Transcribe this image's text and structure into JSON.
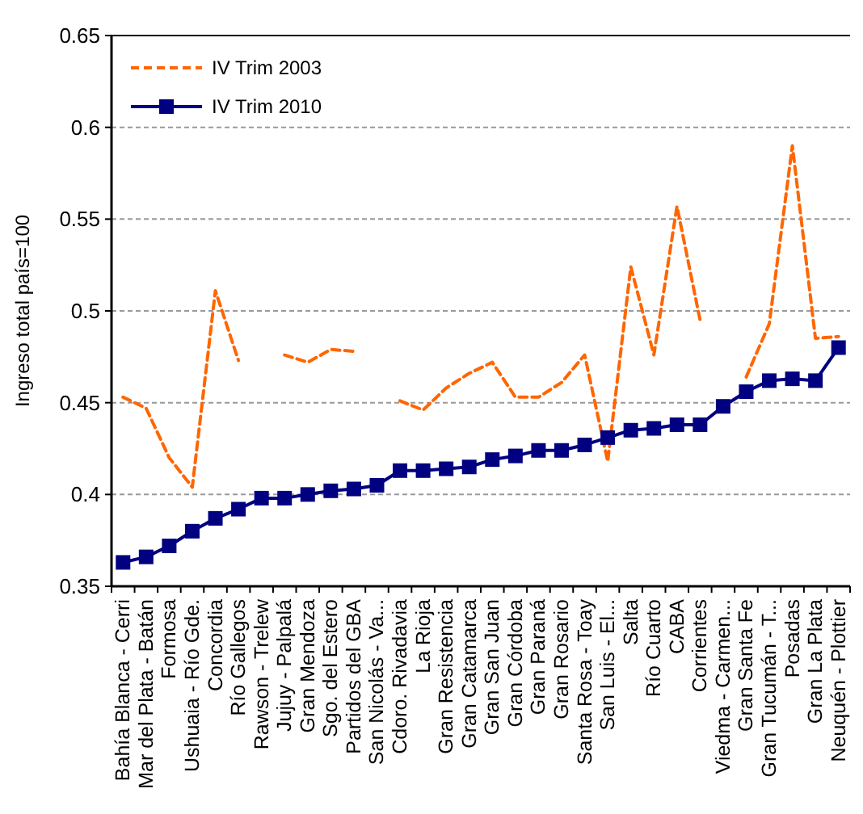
{
  "chart_data": {
    "type": "line",
    "ylabel": "Ingreso total país=100",
    "categories": [
      "Bahía Blanca - Cerri",
      "Mar del Plata - Batán",
      "Formosa",
      "Ushuaia - Río Gde.",
      "Concordia",
      "Río Gallegos",
      "Rawson - Trelew",
      "Jujuy - Palpalá",
      "Gran Mendoza",
      "Sgo. del Estero",
      "Partidos del GBA",
      "San Nicolás - Va...",
      "Cdoro. Rivadavia",
      "La Rioja",
      "Gran Resistencia",
      "Gran Catamarca",
      "Gran San Juan",
      "Gran Córdoba",
      "Gran Paraná",
      "Gran Rosario",
      "Santa Rosa - Toay",
      "San Luis - El...",
      "Salta",
      "Río Cuarto",
      "CABA",
      "Corrientes",
      "Viedma - Carmen...",
      "Gran Santa Fe",
      "Gran Tucumán - T...",
      "Posadas",
      "Gran La Plata",
      "Neuquén - Plottier"
    ],
    "series": [
      {
        "name": "IV Trim 2003",
        "color": "#ff6600",
        "line_style": "dashed",
        "marker": "none",
        "values": [
          0.453,
          0.447,
          0.42,
          0.404,
          0.511,
          0.473,
          null,
          0.476,
          0.472,
          0.479,
          0.478,
          null,
          0.451,
          0.446,
          0.458,
          0.466,
          0.472,
          0.453,
          0.453,
          0.461,
          0.476,
          0.418,
          0.524,
          0.476,
          0.557,
          0.495,
          null,
          0.464,
          0.493,
          0.59,
          0.485,
          0.486
        ]
      },
      {
        "name": "IV Trim 2010",
        "color": "#000080",
        "line_style": "solid",
        "marker": "square",
        "values": [
          0.363,
          0.366,
          0.372,
          0.38,
          0.387,
          0.392,
          0.398,
          0.398,
          0.4,
          0.402,
          0.403,
          0.405,
          0.413,
          0.413,
          0.414,
          0.415,
          0.419,
          0.421,
          0.424,
          0.424,
          0.427,
          0.431,
          0.435,
          0.436,
          0.438,
          0.438,
          0.448,
          0.456,
          0.462,
          0.463,
          0.462,
          0.48
        ]
      }
    ],
    "ylim": [
      0.35,
      0.65
    ],
    "yticks": [
      0.35,
      0.4,
      0.45,
      0.5,
      0.55,
      0.6,
      0.65
    ],
    "grid": "y",
    "legend": "top left"
  }
}
